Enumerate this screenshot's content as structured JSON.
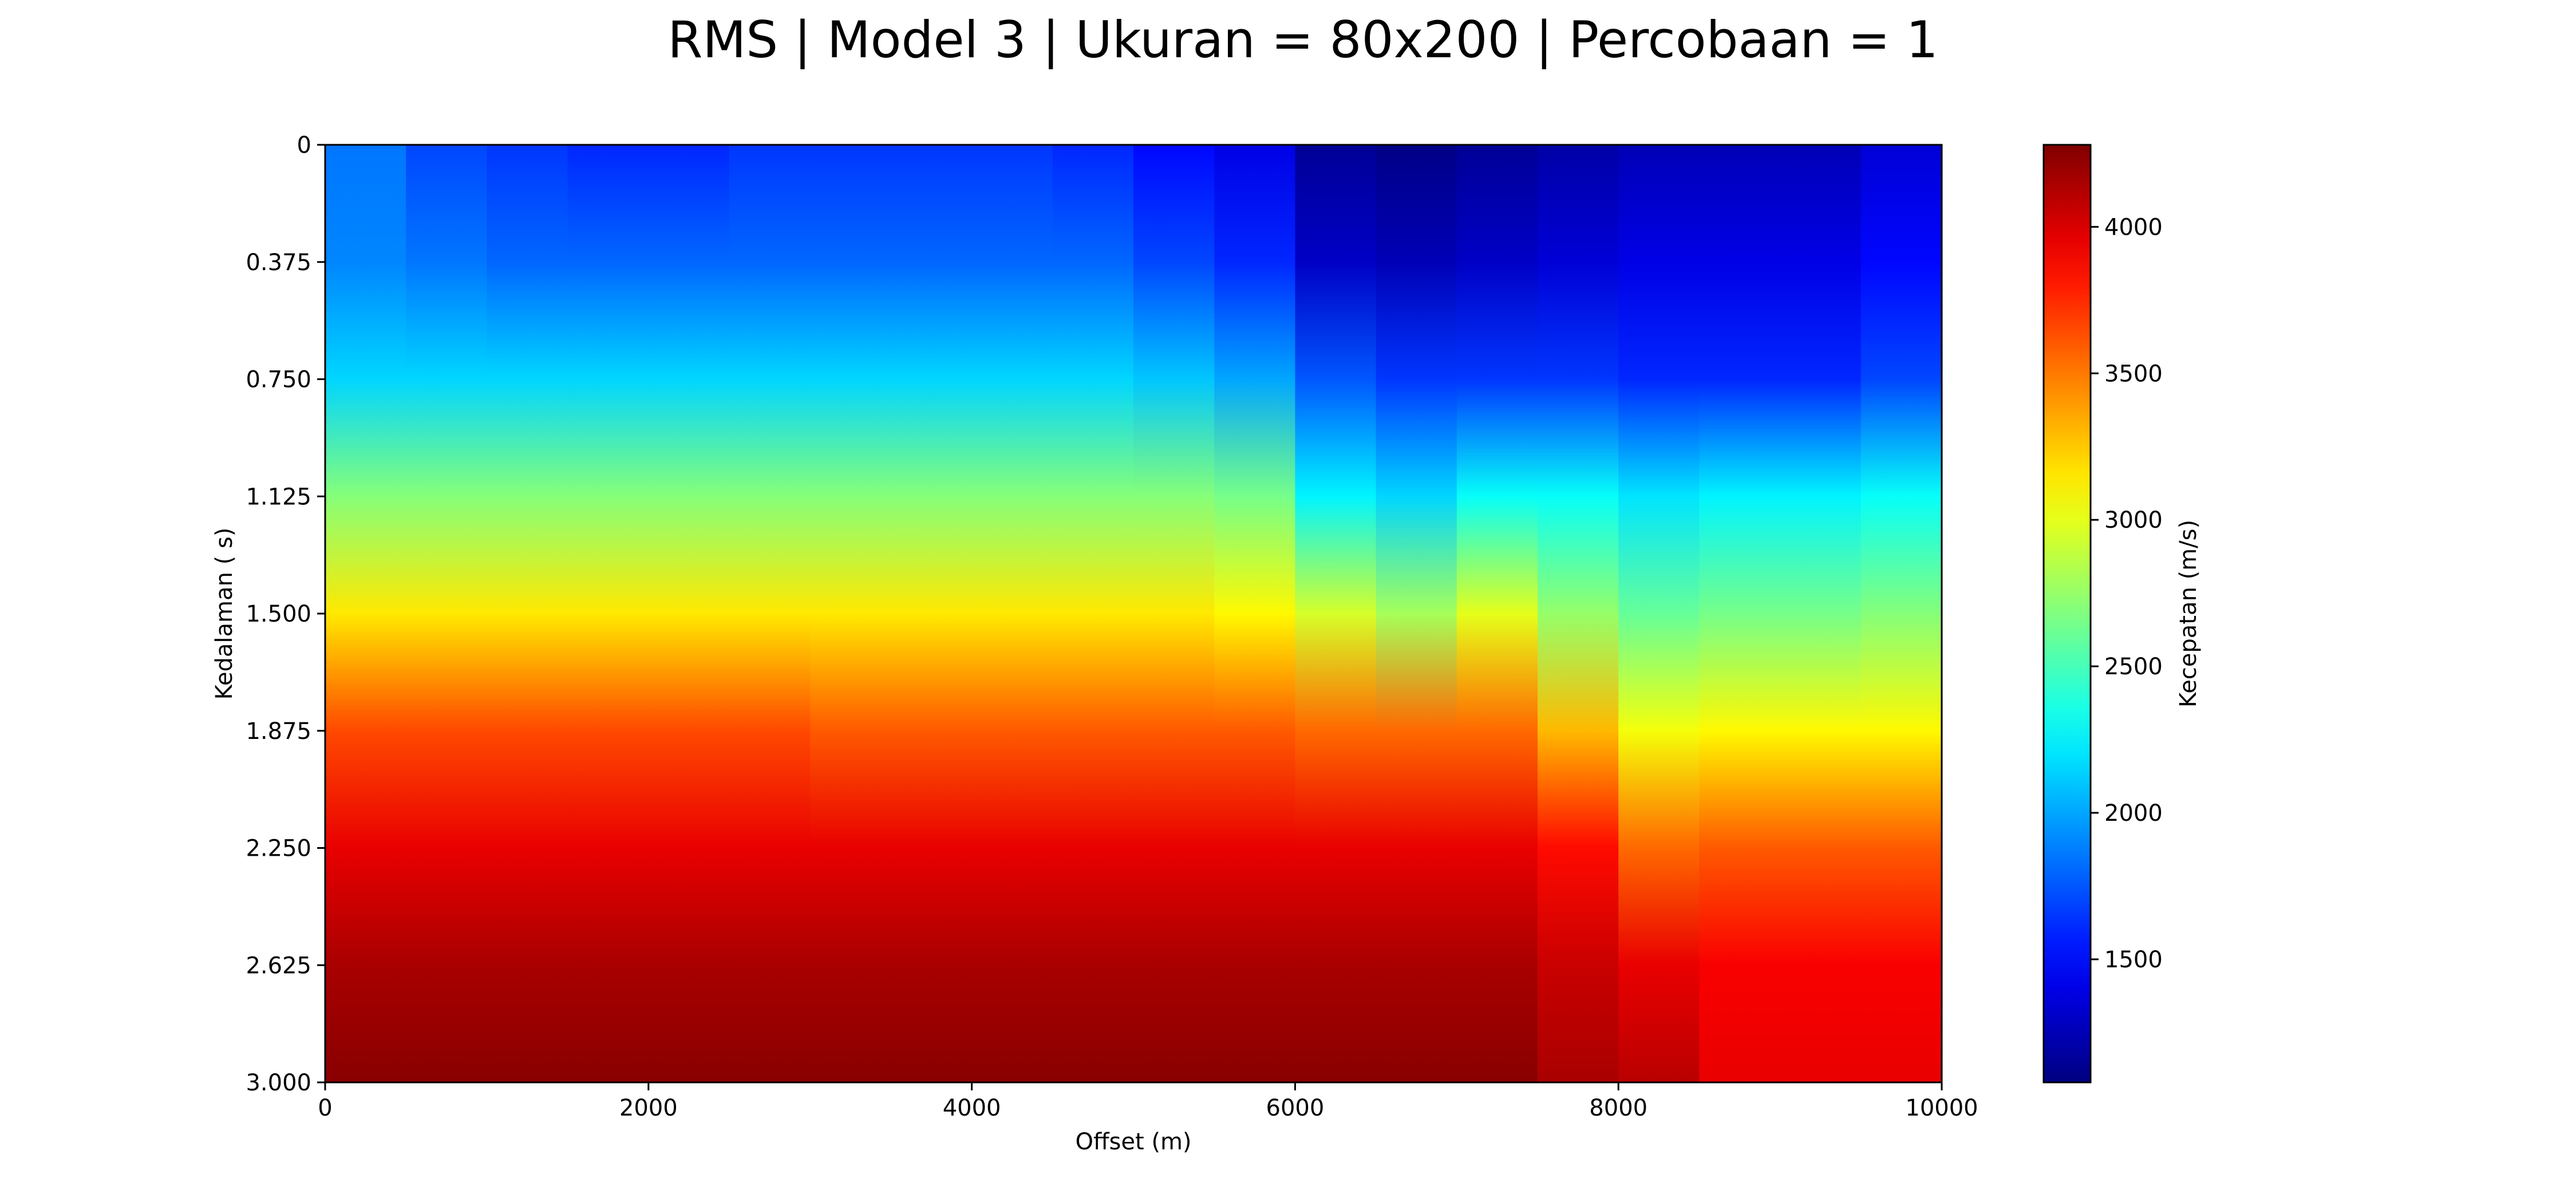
{
  "chart_data": {
    "type": "heatmap",
    "title": "RMS | Model 3 | Ukuran = 80x200 | Percobaan = 1",
    "xlabel": "Offset (m)",
    "ylabel": "Kedalaman ( s)",
    "xlim": [
      0,
      10000
    ],
    "ylim": [
      0,
      3.0
    ],
    "y_inverted": true,
    "x_ticks": [
      "0",
      "2000",
      "4000",
      "6000",
      "8000",
      "10000"
    ],
    "y_ticks": [
      "0",
      "0.375",
      "0.750",
      "1.125",
      "1.500",
      "1.875",
      "2.250",
      "2.625",
      "3.000"
    ],
    "colormap": "jet",
    "colorbar": {
      "label": "Kecepatan (m/s)",
      "vmin": 1080,
      "vmax": 4280,
      "ticks": [
        "1500",
        "2000",
        "2500",
        "3000",
        "3500",
        "4000"
      ]
    },
    "grid_shape": [
      200,
      80
    ],
    "column_width_m": 500,
    "depth_profile": {
      "depth_s": [
        0,
        0.375,
        0.75,
        1.125,
        1.5,
        1.875,
        2.25,
        2.625,
        3.0
      ],
      "columns": [
        {
          "x_start": 0,
          "x_end": 500,
          "velocity": [
            1850,
            1900,
            2150,
            2700,
            3150,
            3650,
            3950,
            4150,
            4250
          ]
        },
        {
          "x_start": 500,
          "x_end": 1000,
          "velocity": [
            1700,
            1850,
            2150,
            2700,
            3150,
            3650,
            3950,
            4150,
            4250
          ]
        },
        {
          "x_start": 1000,
          "x_end": 1500,
          "velocity": [
            1650,
            1800,
            2150,
            2700,
            3150,
            3650,
            3950,
            4150,
            4250
          ]
        },
        {
          "x_start": 1500,
          "x_end": 2000,
          "velocity": [
            1600,
            1800,
            2150,
            2700,
            3150,
            3650,
            3950,
            4150,
            4250
          ]
        },
        {
          "x_start": 2000,
          "x_end": 2500,
          "velocity": [
            1600,
            1800,
            2150,
            2700,
            3150,
            3650,
            3950,
            4150,
            4250
          ]
        },
        {
          "x_start": 2500,
          "x_end": 3000,
          "velocity": [
            1650,
            1800,
            2150,
            2700,
            3150,
            3650,
            3950,
            4150,
            4250
          ]
        },
        {
          "x_start": 3000,
          "x_end": 3500,
          "velocity": [
            1650,
            1800,
            2150,
            2700,
            3150,
            3600,
            3950,
            4150,
            4250
          ]
        },
        {
          "x_start": 3500,
          "x_end": 4000,
          "velocity": [
            1650,
            1800,
            2150,
            2700,
            3150,
            3600,
            3950,
            4150,
            4250
          ]
        },
        {
          "x_start": 4000,
          "x_end": 4500,
          "velocity": [
            1650,
            1800,
            2150,
            2700,
            3150,
            3600,
            3950,
            4150,
            4250
          ]
        },
        {
          "x_start": 4500,
          "x_end": 5000,
          "velocity": [
            1600,
            1800,
            2150,
            2700,
            3150,
            3600,
            3950,
            4150,
            4250
          ]
        },
        {
          "x_start": 5000,
          "x_end": 5500,
          "velocity": [
            1500,
            1700,
            2100,
            2700,
            3150,
            3600,
            3950,
            4150,
            4250
          ]
        },
        {
          "x_start": 5500,
          "x_end": 6000,
          "velocity": [
            1400,
            1600,
            2000,
            2650,
            3100,
            3600,
            3950,
            4150,
            4250
          ]
        },
        {
          "x_start": 6000,
          "x_end": 6500,
          "velocity": [
            1150,
            1300,
            1750,
            2250,
            2950,
            3550,
            3950,
            4150,
            4250
          ]
        },
        {
          "x_start": 6500,
          "x_end": 7000,
          "velocity": [
            1100,
            1250,
            1650,
            2150,
            2800,
            3550,
            3950,
            4150,
            4250
          ]
        },
        {
          "x_start": 7000,
          "x_end": 7500,
          "velocity": [
            1150,
            1300,
            1650,
            2300,
            3000,
            3550,
            3950,
            4150,
            4250
          ]
        },
        {
          "x_start": 7500,
          "x_end": 8000,
          "velocity": [
            1200,
            1350,
            1650,
            2300,
            2750,
            3300,
            3850,
            4050,
            4150
          ]
        },
        {
          "x_start": 8000,
          "x_end": 8500,
          "velocity": [
            1250,
            1400,
            1600,
            2200,
            2600,
            3050,
            3550,
            3950,
            4100
          ]
        },
        {
          "x_start": 8500,
          "x_end": 9000,
          "velocity": [
            1250,
            1400,
            1600,
            2250,
            2650,
            3100,
            3600,
            3900,
            3950
          ]
        },
        {
          "x_start": 9000,
          "x_end": 9500,
          "velocity": [
            1250,
            1400,
            1600,
            2250,
            2650,
            3100,
            3600,
            3900,
            3950
          ]
        },
        {
          "x_start": 9500,
          "x_end": 10000,
          "velocity": [
            1350,
            1500,
            1700,
            2300,
            2700,
            3100,
            3600,
            3900,
            3950
          ]
        }
      ]
    }
  }
}
